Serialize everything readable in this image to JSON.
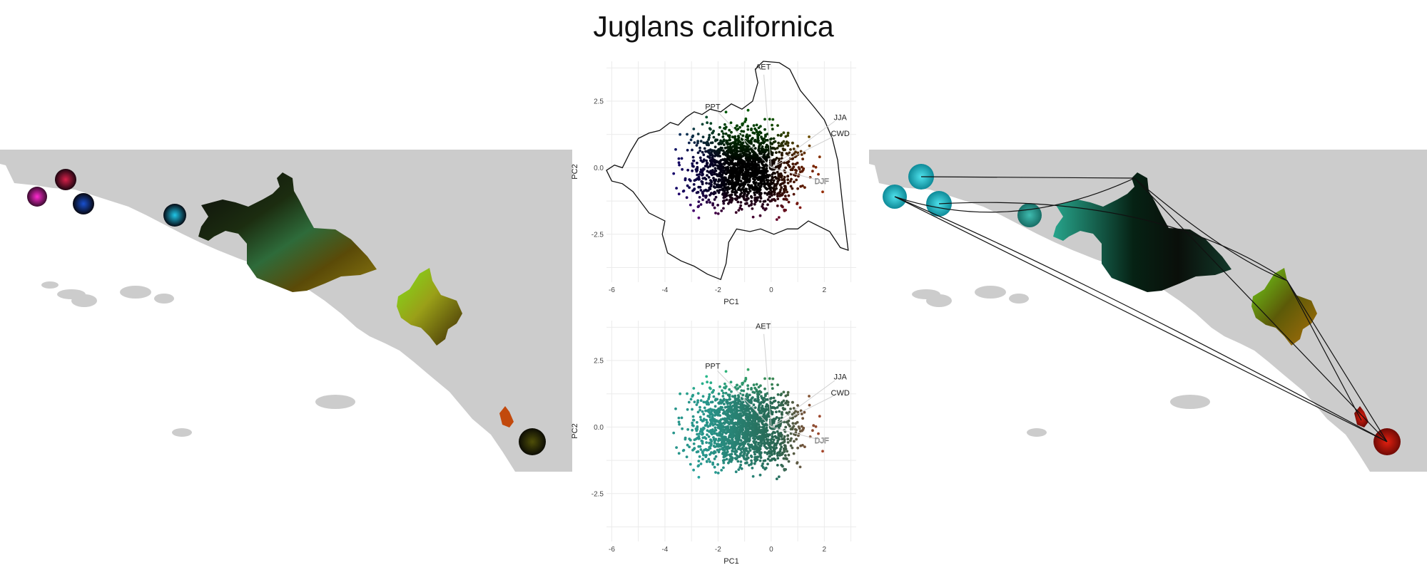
{
  "figure": {
    "title": "Juglans californica"
  },
  "chart_data": [
    {
      "type": "scatter",
      "panel": "top",
      "xlabel": "PC1",
      "ylabel": "PC2",
      "xlim": [
        -6.2,
        3.2
      ],
      "ylim": [
        -4.3,
        4.0
      ],
      "xticks": [
        -6,
        -4,
        -2,
        0,
        2
      ],
      "yticks": [
        -2.5,
        0.0,
        2.5
      ],
      "xtick_labels": [
        "-6",
        "-4",
        "-2",
        "0",
        "2"
      ],
      "ytick_labels": [
        "-2.5",
        "0.0",
        "2.5"
      ],
      "grid": true,
      "hull": true,
      "colors": "position",
      "loadings": [
        {
          "label": "AET",
          "x": -0.3,
          "y": 3.8
        },
        {
          "label": "PPT",
          "x": -2.2,
          "y": 2.3
        },
        {
          "label": "JJA",
          "x": 2.6,
          "y": 1.9
        },
        {
          "label": "CWD",
          "x": 2.6,
          "y": 1.3
        },
        {
          "label": "DJF",
          "x": 1.9,
          "y": -0.5
        }
      ],
      "boundary": [
        [
          -6.2,
          -0.1
        ],
        [
          -5.9,
          0.1
        ],
        [
          -5.6,
          0.0
        ],
        [
          -5.3,
          0.6
        ],
        [
          -5.0,
          1.1
        ],
        [
          -4.6,
          1.3
        ],
        [
          -4.2,
          1.4
        ],
        [
          -3.8,
          1.7
        ],
        [
          -3.5,
          1.6
        ],
        [
          -3.2,
          1.9
        ],
        [
          -2.9,
          2.1
        ],
        [
          -2.6,
          2.0
        ],
        [
          -2.3,
          2.2
        ],
        [
          -1.9,
          2.1
        ],
        [
          -1.5,
          2.4
        ],
        [
          -1.1,
          2.2
        ],
        [
          -0.7,
          2.5
        ],
        [
          -0.5,
          3.2
        ],
        [
          -0.6,
          3.7
        ],
        [
          -0.3,
          4.0
        ],
        [
          0.3,
          3.95
        ],
        [
          0.7,
          3.7
        ],
        [
          1.1,
          2.9
        ],
        [
          1.6,
          2.3
        ],
        [
          2.0,
          1.8
        ],
        [
          2.3,
          1.1
        ],
        [
          2.5,
          0.3
        ],
        [
          2.6,
          -0.6
        ],
        [
          2.7,
          -1.5
        ],
        [
          2.8,
          -2.3
        ],
        [
          2.9,
          -3.1
        ],
        [
          2.6,
          -3.0
        ],
        [
          2.2,
          -2.4
        ],
        [
          1.8,
          -2.2
        ],
        [
          1.4,
          -2.0
        ],
        [
          1.0,
          -2.3
        ],
        [
          0.6,
          -2.3
        ],
        [
          0.1,
          -2.5
        ],
        [
          -0.4,
          -2.3
        ],
        [
          -0.8,
          -2.4
        ],
        [
          -1.3,
          -2.3
        ],
        [
          -1.6,
          -2.8
        ],
        [
          -1.7,
          -3.6
        ],
        [
          -1.9,
          -4.2
        ],
        [
          -2.4,
          -4.0
        ],
        [
          -2.9,
          -3.7
        ],
        [
          -3.4,
          -3.5
        ],
        [
          -3.9,
          -3.2
        ],
        [
          -4.1,
          -2.5
        ],
        [
          -4.0,
          -2.0
        ],
        [
          -4.6,
          -1.7
        ],
        [
          -5.2,
          -0.9
        ],
        [
          -5.6,
          -0.6
        ],
        [
          -6.0,
          -0.5
        ]
      ]
    },
    {
      "type": "scatter",
      "panel": "bottom",
      "xlabel": "PC1",
      "ylabel": "PC2",
      "xlim": [
        -6.2,
        3.2
      ],
      "ylim": [
        -4.3,
        4.0
      ],
      "xticks": [
        -6,
        -4,
        -2,
        0,
        2
      ],
      "yticks": [
        -2.5,
        0.0,
        2.5
      ],
      "xtick_labels": [
        "-6",
        "-4",
        "-2",
        "0",
        "2"
      ],
      "ytick_labels": [
        "-2.5",
        "0.0",
        "2.5"
      ],
      "grid": true,
      "hull": false,
      "colors": "geography",
      "loadings": [
        {
          "label": "AET",
          "x": -0.3,
          "y": 3.8
        },
        {
          "label": "PPT",
          "x": -2.2,
          "y": 2.3
        },
        {
          "label": "JJA",
          "x": 2.6,
          "y": 1.9
        },
        {
          "label": "CWD",
          "x": 2.6,
          "y": 1.3
        },
        {
          "label": "DJF",
          "x": 1.9,
          "y": -0.5
        }
      ]
    }
  ],
  "maps": {
    "background_color": "#cccccc",
    "left_colors": "climate-pca",
    "right_colors": "geographic-distance"
  }
}
